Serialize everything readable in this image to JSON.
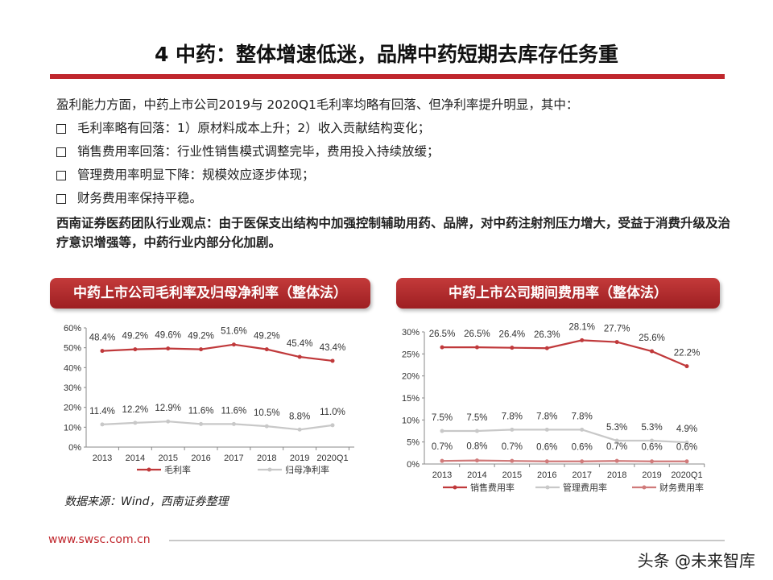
{
  "title": "4 中药：整体增速低迷，品牌中药短期去库存任务重",
  "intro": "盈利能力方面，中药上市公司2019与 2020Q1毛利率均略有回落、但净利率提升明显，其中：",
  "bullets": [
    "毛利率略有回落：1）原材料成本上升；2）收入贡献结构变化；",
    "销售费用率回落：行业性销售模式调整完毕，费用投入持续放缓；",
    "管理费用率明显下降：规模效应逐步体现；",
    "财务费用率保持平稳。"
  ],
  "view": "西南证券医药团队行业观点：由于医保支出结构中加强控制辅助用药、品牌，对中药注射剂压力增大，受益于消费升级及治疗意识增强等，中药行业内部分化加剧。",
  "source": "数据来源：Wind，西南证券整理",
  "footer_url": "www.swsc.com.cn",
  "watermark": "头条 @未来智库",
  "chart_data": [
    {
      "type": "line",
      "title": "中药上市公司毛利率及归母净利率（整体法）",
      "categories": [
        "2013",
        "2014",
        "2015",
        "2016",
        "2017",
        "2018",
        "2019",
        "2020Q1"
      ],
      "ylim": [
        0,
        60
      ],
      "yticks": [
        "0%",
        "10%",
        "20%",
        "30%",
        "40%",
        "50%",
        "60%"
      ],
      "legend": "bottom",
      "series": [
        {
          "name": "毛利率",
          "color": "#c0393b",
          "values": [
            48.4,
            49.2,
            49.6,
            49.2,
            51.6,
            49.2,
            45.4,
            43.4
          ],
          "labels": [
            "48.4%",
            "49.2%",
            "49.6%",
            "49.2%",
            "51.6%",
            "49.2%",
            "45.4%",
            "43.4%"
          ]
        },
        {
          "name": "归母净利率",
          "color": "#c8c8c8",
          "values": [
            11.4,
            12.2,
            12.9,
            11.6,
            11.6,
            10.5,
            8.8,
            11.0
          ],
          "labels": [
            "11.4%",
            "12.2%",
            "12.9%",
            "11.6%",
            "11.6%",
            "10.5%",
            "8.8%",
            "11.0%"
          ]
        }
      ]
    },
    {
      "type": "line",
      "title": "中药上市公司期间费用率（整体法）",
      "categories": [
        "2013",
        "2014",
        "2015",
        "2016",
        "2017",
        "2018",
        "2019",
        "2020Q1"
      ],
      "ylim": [
        0,
        30
      ],
      "yticks": [
        "0%",
        "5%",
        "10%",
        "15%",
        "20%",
        "25%",
        "30%"
      ],
      "legend": "bottom",
      "series": [
        {
          "name": "销售费用率",
          "color": "#c0393b",
          "values": [
            26.5,
            26.5,
            26.4,
            26.3,
            28.1,
            27.7,
            25.6,
            22.2
          ],
          "labels": [
            "26.5%",
            "26.5%",
            "26.4%",
            "26.3%",
            "28.1%",
            "27.7%",
            "25.6%",
            "22.2%"
          ]
        },
        {
          "name": "管理费用率",
          "color": "#c8c8c8",
          "values": [
            7.5,
            7.5,
            7.8,
            7.8,
            7.8,
            5.3,
            5.3,
            4.9
          ],
          "labels": [
            "7.5%",
            "7.5%",
            "7.8%",
            "7.8%",
            "7.8%",
            "5.3%",
            "5.3%",
            "4.9%"
          ]
        },
        {
          "name": "财务费用率",
          "color": "#d07a7a",
          "values": [
            0.7,
            0.8,
            0.7,
            0.6,
            0.6,
            0.7,
            0.6,
            0.6
          ],
          "labels": [
            "0.7%",
            "0.8%",
            "0.7%",
            "0.6%",
            "0.6%",
            "0.7%",
            "0.6%",
            "0.6%"
          ]
        }
      ]
    }
  ]
}
